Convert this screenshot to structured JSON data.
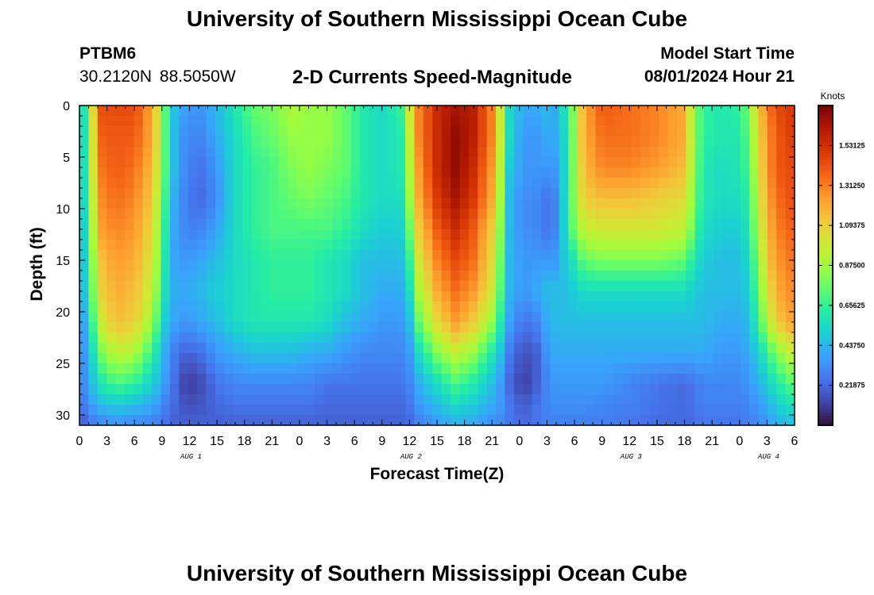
{
  "header": {
    "title": "University of Southern Mississippi Ocean Cube",
    "station": "PTBM6",
    "coordinates": "30.2120N  88.5050W",
    "subtitle": "2-D Currents Speed-Magnitude",
    "model_start_label": "Model Start Time",
    "model_start_value": "08/01/2024 Hour 21"
  },
  "footer": {
    "title": "University of Southern Mississippi Ocean Cube"
  },
  "colors": {
    "background": "#ffffff",
    "palette": [
      "#30123b",
      "#4145ab",
      "#4675ed",
      "#39a2fc",
      "#1bcfd4",
      "#24eca6",
      "#61fc6c",
      "#a4fc3b",
      "#d1e834",
      "#f3c63a",
      "#fe9b2d",
      "#f36315",
      "#d93806",
      "#b11901",
      "#7a0403"
    ]
  },
  "chart_data": {
    "type": "heatmap",
    "title": "2-D Currents Speed-Magnitude",
    "xlabel": "Forecast Time(Z)",
    "ylabel": "Depth (ft)",
    "x_start": 0,
    "x_end": 78,
    "x_ticks": [
      {
        "pos": 0,
        "label": "0"
      },
      {
        "pos": 3,
        "label": "3"
      },
      {
        "pos": 6,
        "label": "6"
      },
      {
        "pos": 9,
        "label": "9"
      },
      {
        "pos": 12,
        "label": "12"
      },
      {
        "pos": 15,
        "label": "15"
      },
      {
        "pos": 18,
        "label": "18"
      },
      {
        "pos": 21,
        "label": "21"
      },
      {
        "pos": 24,
        "label": "0"
      },
      {
        "pos": 27,
        "label": "3"
      },
      {
        "pos": 30,
        "label": "6"
      },
      {
        "pos": 33,
        "label": "9"
      },
      {
        "pos": 36,
        "label": "12"
      },
      {
        "pos": 39,
        "label": "15"
      },
      {
        "pos": 42,
        "label": "18"
      },
      {
        "pos": 45,
        "label": "21"
      },
      {
        "pos": 48,
        "label": "0"
      },
      {
        "pos": 51,
        "label": "3"
      },
      {
        "pos": 54,
        "label": "6"
      },
      {
        "pos": 57,
        "label": "9"
      },
      {
        "pos": 60,
        "label": "12"
      },
      {
        "pos": 63,
        "label": "15"
      },
      {
        "pos": 66,
        "label": "18"
      },
      {
        "pos": 69,
        "label": "21"
      },
      {
        "pos": 72,
        "label": "0"
      },
      {
        "pos": 75,
        "label": "3"
      },
      {
        "pos": 78,
        "label": "6"
      }
    ],
    "date_labels": [
      {
        "pos": 12,
        "label": "AUG 1"
      },
      {
        "pos": 36,
        "label": "AUG 2"
      },
      {
        "pos": 60,
        "label": "AUG 3"
      },
      {
        "pos": 75,
        "label": "AUG 4"
      }
    ],
    "ylim": [
      0,
      31
    ],
    "y_ticks": [
      0,
      5,
      10,
      15,
      20,
      25,
      30
    ],
    "colorbar": {
      "title": "Knots",
      "range": [
        0,
        1.75
      ],
      "ticks": [
        0.21875,
        0.4375,
        0.65625,
        0.875,
        1.09375,
        1.3125,
        1.53125
      ],
      "tick_labels": [
        "0.21875",
        "0.43750",
        "0.65625",
        "0.87500",
        "1.09375",
        "1.31250",
        "1.53125"
      ]
    },
    "speed_grid": {
      "units": "knots",
      "x_hours": [
        0,
        1,
        2.5,
        4,
        6,
        8,
        9,
        10,
        11,
        12,
        13.5,
        15,
        17,
        19,
        21,
        23,
        25,
        27,
        29,
        31,
        33,
        35,
        36,
        37,
        39,
        41,
        43,
        45,
        46,
        47,
        48.5,
        50,
        51,
        52,
        53,
        54,
        55,
        57,
        60,
        63,
        66,
        67,
        68,
        70,
        72,
        73,
        74,
        75,
        76,
        78
      ],
      "depth_ft": [
        0,
        3,
        6,
        9,
        12,
        15,
        18,
        21,
        24,
        27,
        29,
        31
      ],
      "rows": [
        [
          0.3,
          0.9,
          1.45,
          1.45,
          1.45,
          1.2,
          0.85,
          0.5,
          0.4,
          0.35,
          0.35,
          0.45,
          0.6,
          0.75,
          0.8,
          0.9,
          0.85,
          0.85,
          0.75,
          0.6,
          0.55,
          0.65,
          1.0,
          1.3,
          1.55,
          1.65,
          1.6,
          1.3,
          0.95,
          0.5,
          0.4,
          0.4,
          0.45,
          0.4,
          0.6,
          0.85,
          1.2,
          1.4,
          1.35,
          1.3,
          1.2,
          0.85,
          0.65,
          0.6,
          0.65,
          0.8,
          1.1,
          1.3,
          1.45,
          1.5
        ],
        [
          0.3,
          0.85,
          1.4,
          1.4,
          1.4,
          1.2,
          0.85,
          0.5,
          0.35,
          0.3,
          0.3,
          0.4,
          0.55,
          0.7,
          0.75,
          0.85,
          0.85,
          0.85,
          0.75,
          0.6,
          0.55,
          0.6,
          0.95,
          1.3,
          1.55,
          1.7,
          1.6,
          1.3,
          0.95,
          0.5,
          0.35,
          0.35,
          0.4,
          0.4,
          0.55,
          0.85,
          1.2,
          1.35,
          1.35,
          1.3,
          1.2,
          0.85,
          0.65,
          0.6,
          0.6,
          0.75,
          1.05,
          1.25,
          1.4,
          1.5
        ],
        [
          0.3,
          0.85,
          1.35,
          1.4,
          1.35,
          1.15,
          0.85,
          0.5,
          0.35,
          0.28,
          0.25,
          0.35,
          0.55,
          0.65,
          0.7,
          0.8,
          0.85,
          0.8,
          0.75,
          0.6,
          0.55,
          0.6,
          0.9,
          1.25,
          1.55,
          1.7,
          1.55,
          1.25,
          0.9,
          0.45,
          0.35,
          0.35,
          0.35,
          0.35,
          0.55,
          0.85,
          1.15,
          1.3,
          1.3,
          1.25,
          1.15,
          0.85,
          0.6,
          0.55,
          0.6,
          0.7,
          1.0,
          1.25,
          1.4,
          1.45
        ],
        [
          0.3,
          0.8,
          1.3,
          1.35,
          1.3,
          1.1,
          0.8,
          0.45,
          0.33,
          0.25,
          0.22,
          0.32,
          0.55,
          0.65,
          0.7,
          0.75,
          0.8,
          0.75,
          0.7,
          0.6,
          0.55,
          0.55,
          0.85,
          1.2,
          1.5,
          1.65,
          1.5,
          1.2,
          0.85,
          0.4,
          0.32,
          0.3,
          0.25,
          0.3,
          0.55,
          0.85,
          1.1,
          1.15,
          1.15,
          1.1,
          1.05,
          0.8,
          0.6,
          0.55,
          0.55,
          0.65,
          0.95,
          1.2,
          1.35,
          1.45
        ],
        [
          0.3,
          0.75,
          1.25,
          1.3,
          1.25,
          1.05,
          0.75,
          0.42,
          0.33,
          0.28,
          0.3,
          0.38,
          0.55,
          0.65,
          0.7,
          0.7,
          0.7,
          0.7,
          0.65,
          0.55,
          0.5,
          0.5,
          0.75,
          1.1,
          1.4,
          1.55,
          1.4,
          1.1,
          0.8,
          0.4,
          0.32,
          0.3,
          0.25,
          0.3,
          0.55,
          0.8,
          0.95,
          1.0,
          1.0,
          1.0,
          0.95,
          0.75,
          0.55,
          0.5,
          0.5,
          0.6,
          0.9,
          1.15,
          1.3,
          1.4
        ],
        [
          0.3,
          0.7,
          1.15,
          1.25,
          1.2,
          1.0,
          0.7,
          0.4,
          0.35,
          0.35,
          0.4,
          0.45,
          0.55,
          0.6,
          0.65,
          0.65,
          0.65,
          0.6,
          0.55,
          0.45,
          0.45,
          0.45,
          0.65,
          1.0,
          1.3,
          1.45,
          1.35,
          1.05,
          0.75,
          0.4,
          0.35,
          0.35,
          0.35,
          0.35,
          0.5,
          0.6,
          0.75,
          0.8,
          0.8,
          0.8,
          0.75,
          0.6,
          0.5,
          0.45,
          0.45,
          0.55,
          0.8,
          1.1,
          1.25,
          1.35
        ],
        [
          0.3,
          0.65,
          1.1,
          1.2,
          1.15,
          0.95,
          0.65,
          0.42,
          0.4,
          0.4,
          0.45,
          0.5,
          0.55,
          0.6,
          0.65,
          0.65,
          0.65,
          0.6,
          0.55,
          0.45,
          0.4,
          0.4,
          0.55,
          0.9,
          1.2,
          1.35,
          1.25,
          1.0,
          0.7,
          0.4,
          0.35,
          0.4,
          0.45,
          0.45,
          0.45,
          0.5,
          0.55,
          0.55,
          0.55,
          0.55,
          0.55,
          0.5,
          0.45,
          0.45,
          0.45,
          0.5,
          0.75,
          1.0,
          1.2,
          1.3
        ],
        [
          0.25,
          0.55,
          1.0,
          1.15,
          1.1,
          0.85,
          0.55,
          0.4,
          0.35,
          0.35,
          0.4,
          0.45,
          0.55,
          0.6,
          0.6,
          0.6,
          0.6,
          0.55,
          0.45,
          0.4,
          0.35,
          0.35,
          0.45,
          0.75,
          1.05,
          1.25,
          1.1,
          0.85,
          0.6,
          0.35,
          0.25,
          0.3,
          0.4,
          0.45,
          0.45,
          0.45,
          0.45,
          0.45,
          0.45,
          0.45,
          0.45,
          0.45,
          0.45,
          0.4,
          0.4,
          0.45,
          0.65,
          0.9,
          1.1,
          1.25
        ],
        [
          0.25,
          0.45,
          0.8,
          0.95,
          0.9,
          0.65,
          0.45,
          0.3,
          0.22,
          0.2,
          0.25,
          0.35,
          0.4,
          0.45,
          0.45,
          0.45,
          0.4,
          0.4,
          0.35,
          0.3,
          0.3,
          0.3,
          0.35,
          0.55,
          0.8,
          0.95,
          0.85,
          0.6,
          0.45,
          0.25,
          0.15,
          0.2,
          0.35,
          0.4,
          0.4,
          0.4,
          0.4,
          0.4,
          0.4,
          0.4,
          0.4,
          0.4,
          0.4,
          0.35,
          0.35,
          0.4,
          0.5,
          0.65,
          0.8,
          1.0
        ],
        [
          0.25,
          0.4,
          0.6,
          0.7,
          0.65,
          0.5,
          0.4,
          0.28,
          0.15,
          0.1,
          0.15,
          0.25,
          0.3,
          0.3,
          0.3,
          0.3,
          0.3,
          0.25,
          0.25,
          0.25,
          0.25,
          0.25,
          0.3,
          0.4,
          0.55,
          0.7,
          0.6,
          0.45,
          0.35,
          0.2,
          0.1,
          0.2,
          0.3,
          0.35,
          0.35,
          0.35,
          0.35,
          0.35,
          0.3,
          0.25,
          0.22,
          0.25,
          0.3,
          0.3,
          0.3,
          0.35,
          0.4,
          0.5,
          0.6,
          0.75
        ],
        [
          0.2,
          0.35,
          0.45,
          0.5,
          0.45,
          0.4,
          0.3,
          0.25,
          0.18,
          0.15,
          0.18,
          0.22,
          0.25,
          0.25,
          0.25,
          0.25,
          0.25,
          0.22,
          0.22,
          0.22,
          0.22,
          0.22,
          0.25,
          0.35,
          0.45,
          0.55,
          0.5,
          0.4,
          0.35,
          0.25,
          0.18,
          0.25,
          0.3,
          0.32,
          0.32,
          0.32,
          0.32,
          0.3,
          0.28,
          0.25,
          0.22,
          0.25,
          0.28,
          0.28,
          0.28,
          0.3,
          0.35,
          0.4,
          0.5,
          0.6
        ],
        [
          0.15,
          0.25,
          0.3,
          0.32,
          0.3,
          0.28,
          0.25,
          0.2,
          0.2,
          0.2,
          0.2,
          0.2,
          0.2,
          0.2,
          0.2,
          0.2,
          0.2,
          0.2,
          0.2,
          0.2,
          0.2,
          0.2,
          0.22,
          0.28,
          0.35,
          0.4,
          0.38,
          0.32,
          0.3,
          0.25,
          0.22,
          0.25,
          0.28,
          0.28,
          0.28,
          0.28,
          0.28,
          0.28,
          0.25,
          0.22,
          0.22,
          0.22,
          0.25,
          0.25,
          0.25,
          0.28,
          0.3,
          0.35,
          0.4,
          0.45
        ]
      ]
    }
  }
}
